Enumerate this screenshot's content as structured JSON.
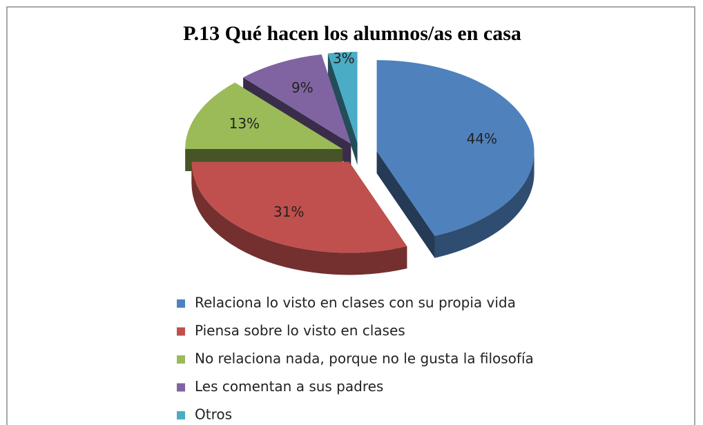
{
  "chart_data": {
    "type": "pie",
    "title": "P.13 Qué hacen los alumnos/as en casa",
    "categories": [
      "Relaciona lo visto en clases con su propia vida",
      "Piensa sobre lo visto en clases",
      "No relaciona nada, porque no le gusta la filosofía",
      "Les comentan a sus padres",
      "Otros"
    ],
    "values": [
      44,
      31,
      13,
      9,
      3
    ],
    "value_labels": [
      "44%",
      "31%",
      "13%",
      "9%",
      "3%"
    ],
    "colors": [
      "#4f81bd",
      "#c0504d",
      "#9bbb59",
      "#8064a2",
      "#4bacc6"
    ],
    "legend": "bottom"
  }
}
